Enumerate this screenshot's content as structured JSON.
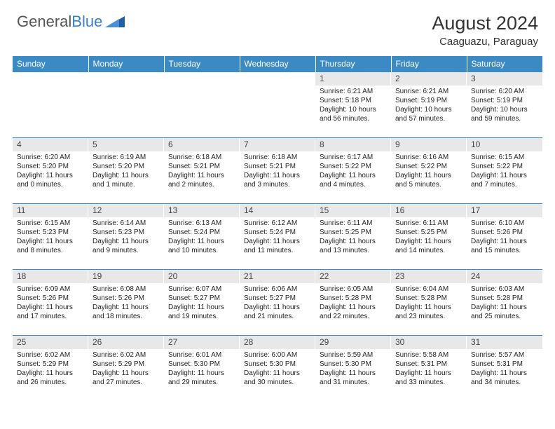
{
  "brand": {
    "left": "General",
    "right": "Blue"
  },
  "title": "August 2024",
  "location": "Caaguazu, Paraguay",
  "colors": {
    "header_bg": "#3b8ac4",
    "header_fg": "#ffffff",
    "daynum_bg": "#e8e8e8",
    "row_divider": "#3b8ac4",
    "logo_accent": "#1f5fa8"
  },
  "day_labels": [
    "Sunday",
    "Monday",
    "Tuesday",
    "Wednesday",
    "Thursday",
    "Friday",
    "Saturday"
  ],
  "grid": {
    "type": "calendar",
    "cols": 7,
    "rows": 5,
    "first_day_col": 4,
    "days": [
      {
        "n": 1,
        "sr": "6:21 AM",
        "ss": "5:18 PM",
        "dl": "10 hours and 56 minutes."
      },
      {
        "n": 2,
        "sr": "6:21 AM",
        "ss": "5:19 PM",
        "dl": "10 hours and 57 minutes."
      },
      {
        "n": 3,
        "sr": "6:20 AM",
        "ss": "5:19 PM",
        "dl": "10 hours and 59 minutes."
      },
      {
        "n": 4,
        "sr": "6:20 AM",
        "ss": "5:20 PM",
        "dl": "11 hours and 0 minutes."
      },
      {
        "n": 5,
        "sr": "6:19 AM",
        "ss": "5:20 PM",
        "dl": "11 hours and 1 minute."
      },
      {
        "n": 6,
        "sr": "6:18 AM",
        "ss": "5:21 PM",
        "dl": "11 hours and 2 minutes."
      },
      {
        "n": 7,
        "sr": "6:18 AM",
        "ss": "5:21 PM",
        "dl": "11 hours and 3 minutes."
      },
      {
        "n": 8,
        "sr": "6:17 AM",
        "ss": "5:22 PM",
        "dl": "11 hours and 4 minutes."
      },
      {
        "n": 9,
        "sr": "6:16 AM",
        "ss": "5:22 PM",
        "dl": "11 hours and 5 minutes."
      },
      {
        "n": 10,
        "sr": "6:15 AM",
        "ss": "5:22 PM",
        "dl": "11 hours and 7 minutes."
      },
      {
        "n": 11,
        "sr": "6:15 AM",
        "ss": "5:23 PM",
        "dl": "11 hours and 8 minutes."
      },
      {
        "n": 12,
        "sr": "6:14 AM",
        "ss": "5:23 PM",
        "dl": "11 hours and 9 minutes."
      },
      {
        "n": 13,
        "sr": "6:13 AM",
        "ss": "5:24 PM",
        "dl": "11 hours and 10 minutes."
      },
      {
        "n": 14,
        "sr": "6:12 AM",
        "ss": "5:24 PM",
        "dl": "11 hours and 11 minutes."
      },
      {
        "n": 15,
        "sr": "6:11 AM",
        "ss": "5:25 PM",
        "dl": "11 hours and 13 minutes."
      },
      {
        "n": 16,
        "sr": "6:11 AM",
        "ss": "5:25 PM",
        "dl": "11 hours and 14 minutes."
      },
      {
        "n": 17,
        "sr": "6:10 AM",
        "ss": "5:26 PM",
        "dl": "11 hours and 15 minutes."
      },
      {
        "n": 18,
        "sr": "6:09 AM",
        "ss": "5:26 PM",
        "dl": "11 hours and 17 minutes."
      },
      {
        "n": 19,
        "sr": "6:08 AM",
        "ss": "5:26 PM",
        "dl": "11 hours and 18 minutes."
      },
      {
        "n": 20,
        "sr": "6:07 AM",
        "ss": "5:27 PM",
        "dl": "11 hours and 19 minutes."
      },
      {
        "n": 21,
        "sr": "6:06 AM",
        "ss": "5:27 PM",
        "dl": "11 hours and 21 minutes."
      },
      {
        "n": 22,
        "sr": "6:05 AM",
        "ss": "5:28 PM",
        "dl": "11 hours and 22 minutes."
      },
      {
        "n": 23,
        "sr": "6:04 AM",
        "ss": "5:28 PM",
        "dl": "11 hours and 23 minutes."
      },
      {
        "n": 24,
        "sr": "6:03 AM",
        "ss": "5:28 PM",
        "dl": "11 hours and 25 minutes."
      },
      {
        "n": 25,
        "sr": "6:02 AM",
        "ss": "5:29 PM",
        "dl": "11 hours and 26 minutes."
      },
      {
        "n": 26,
        "sr": "6:02 AM",
        "ss": "5:29 PM",
        "dl": "11 hours and 27 minutes."
      },
      {
        "n": 27,
        "sr": "6:01 AM",
        "ss": "5:30 PM",
        "dl": "11 hours and 29 minutes."
      },
      {
        "n": 28,
        "sr": "6:00 AM",
        "ss": "5:30 PM",
        "dl": "11 hours and 30 minutes."
      },
      {
        "n": 29,
        "sr": "5:59 AM",
        "ss": "5:30 PM",
        "dl": "11 hours and 31 minutes."
      },
      {
        "n": 30,
        "sr": "5:58 AM",
        "ss": "5:31 PM",
        "dl": "11 hours and 33 minutes."
      },
      {
        "n": 31,
        "sr": "5:57 AM",
        "ss": "5:31 PM",
        "dl": "11 hours and 34 minutes."
      }
    ]
  },
  "labels": {
    "sunrise": "Sunrise:",
    "sunset": "Sunset:",
    "daylight": "Daylight:"
  }
}
